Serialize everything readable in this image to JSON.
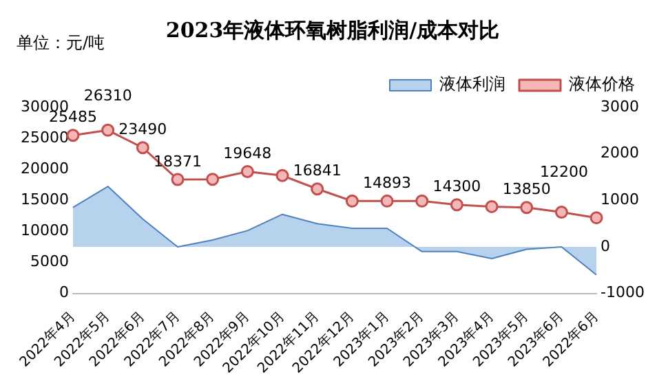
{
  "chart_data": {
    "type": "line",
    "title": "2023年液体环氧树脂利润/成本对比",
    "annotations": [
      "单位：元/吨"
    ],
    "categories": [
      "2022年4月",
      "2022年5月",
      "2022年6月",
      "2022年7月",
      "2022年8月",
      "2022年9月",
      "2022年10月",
      "2022年11月",
      "2022年12月",
      "2023年1月",
      "2023年2月",
      "2023年3月",
      "2023年4月",
      "2023年5月",
      "2023年6月",
      "2022年6月"
    ],
    "series": [
      {
        "name": "液体利润",
        "type": "area",
        "axis": "y2",
        "color": "#9dc3e6",
        "values": [
          850,
          1300,
          600,
          0,
          150,
          350,
          700,
          500,
          400,
          400,
          -100,
          -100,
          -250,
          -50,
          0,
          -600
        ]
      },
      {
        "name": "液体价格",
        "type": "line",
        "color": "#c0504d",
        "marker": "circle",
        "values": [
          25485,
          26310,
          23490,
          18371,
          18400,
          19648,
          19000,
          16841,
          14900,
          14893,
          14900,
          14300,
          14000,
          13850,
          13100,
          12200
        ],
        "value_labels": [
          "25485",
          "26310",
          "23490",
          "18371",
          null,
          "19648",
          null,
          "16841",
          null,
          "14893",
          null,
          "14300",
          null,
          "13850",
          null,
          "12200"
        ]
      }
    ],
    "ylim": [
      0,
      30000
    ],
    "yticks": [
      0,
      5000,
      10000,
      15000,
      20000,
      25000,
      30000
    ],
    "y2lim": [
      -1000,
      3000
    ],
    "y2ticks": [
      -1000,
      0,
      1000,
      2000,
      3000
    ],
    "grid": false,
    "legend": "top right"
  }
}
